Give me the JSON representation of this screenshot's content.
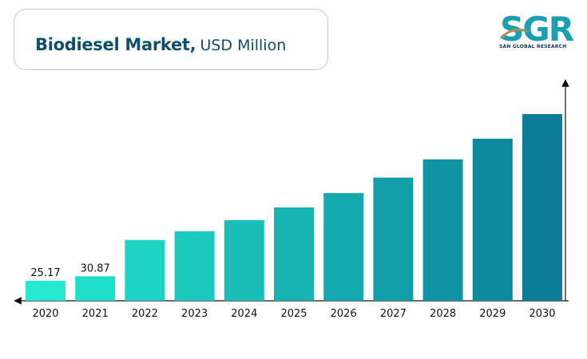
{
  "title": {
    "main": "Biodiesel Market,",
    "unit": "USD Million"
  },
  "logo": {
    "text": "SGR",
    "subtitle": "SAN GLOBAL RESEARCH"
  },
  "chart_data": {
    "type": "bar",
    "categories": [
      "2020",
      "2021",
      "2022",
      "2023",
      "2024",
      "2025",
      "2026",
      "2027",
      "2028",
      "2029",
      "2030"
    ],
    "values": [
      25.17,
      30.87,
      76.5,
      87.5,
      101.5,
      117.5,
      135.5,
      155,
      178,
      204,
      235
    ],
    "data_labels": [
      "25.17",
      "30.87",
      "",
      "",
      "",
      "",
      "",
      "",
      "",
      "",
      ""
    ],
    "ylim": [
      0,
      250
    ],
    "grid": false,
    "axis_labels_visible": false,
    "colors": {
      "start": "#22ead0",
      "end": "#0b7d96"
    }
  }
}
